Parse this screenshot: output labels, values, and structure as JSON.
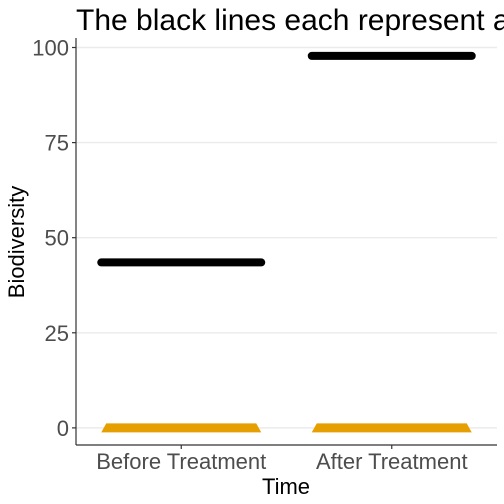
{
  "chart_data": {
    "type": "bar",
    "title": "The black lines each represent a d",
    "xlabel": "Time",
    "ylabel": "Biodiversity",
    "categories": [
      "Before Treatment",
      "After Treatment"
    ],
    "series": [
      {
        "values": [
          43.5,
          97.8
        ],
        "color": "#000000"
      },
      {
        "values": [
          0,
          0
        ],
        "color": "#e69f00"
      }
    ],
    "ylim": [
      -4.5,
      102.5
    ],
    "yticks": [
      0,
      25,
      50,
      75,
      100
    ],
    "grid": "horizontal",
    "colors": {
      "line": "#000000",
      "marker": "#e69f00",
      "grid": "#ebebeb",
      "axis": "#333333"
    }
  }
}
